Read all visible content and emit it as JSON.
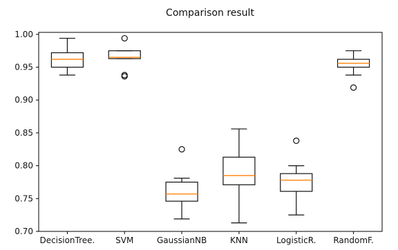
{
  "chart_data": {
    "type": "boxplot",
    "title": "Comparison result",
    "xlabel": "",
    "ylabel": "",
    "ylim": [
      0.7,
      1.003
    ],
    "yticks": [
      "0.70",
      "0.75",
      "0.80",
      "0.85",
      "0.90",
      "0.95",
      "1.00"
    ],
    "categories": [
      "DecisionTree.",
      "SVM",
      "GaussianNB",
      "KNN",
      "LogisticR.",
      "RandomF."
    ],
    "boxes": [
      {
        "whislo": 0.938,
        "q1": 0.95,
        "med": 0.962,
        "q3": 0.972,
        "whishi": 0.994,
        "fliers": []
      },
      {
        "whislo": 0.963,
        "q1": 0.963,
        "med": 0.965,
        "q3": 0.975,
        "whishi": 0.975,
        "fliers": [
          0.994,
          0.938,
          0.936
        ]
      },
      {
        "whislo": 0.719,
        "q1": 0.746,
        "med": 0.757,
        "q3": 0.775,
        "whishi": 0.781,
        "fliers": [
          0.825
        ]
      },
      {
        "whislo": 0.713,
        "q1": 0.771,
        "med": 0.785,
        "q3": 0.813,
        "whishi": 0.856,
        "fliers": []
      },
      {
        "whislo": 0.725,
        "q1": 0.761,
        "med": 0.778,
        "q3": 0.788,
        "whishi": 0.8,
        "fliers": [
          0.838
        ]
      },
      {
        "whislo": 0.938,
        "q1": 0.95,
        "med": 0.956,
        "q3": 0.962,
        "whishi": 0.975,
        "fliers": [
          0.919
        ]
      }
    ],
    "grid": false,
    "colors": {
      "box": "#111111",
      "median": "#ff8c1a"
    }
  }
}
